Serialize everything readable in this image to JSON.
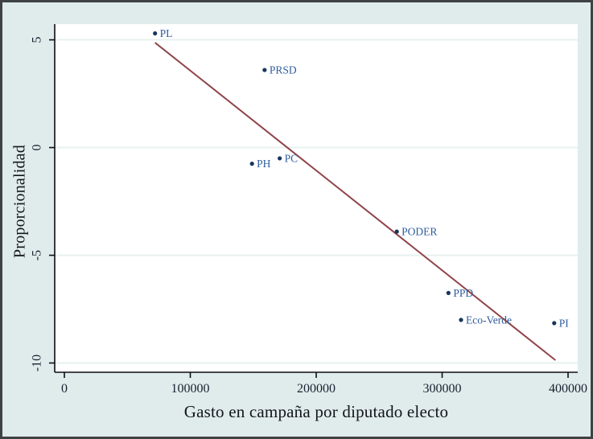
{
  "figure": {
    "kind": "stata-style scatter plot with linear fit",
    "background_color": "#dfeceb",
    "plot_background_color": "#ffffff",
    "frame_border_color": "#3f4244",
    "grid_color": "#e7f1f0",
    "axis_line_color": "#0d0d14",
    "tick_text_color": "#1a2030",
    "marker_color": "#17365d",
    "marker_label_color": "#2e5c9e",
    "fit_line_color": "#904448"
  },
  "chart_data": {
    "type": "scatter",
    "title": "",
    "xlabel": "Gasto en campaña por diputado electo",
    "ylabel": "Proporcionalidad",
    "grid": "horizontal-only",
    "legend": "none",
    "x_ticks": [
      0,
      100000,
      200000,
      300000,
      400000
    ],
    "x_tick_labels": [
      "0",
      "100000",
      "200000",
      "300000",
      "400000"
    ],
    "y_ticks": [
      5,
      0,
      -5,
      -10
    ],
    "y_tick_labels": [
      "5",
      "0",
      "-5",
      "-10"
    ],
    "xlim": [
      -7670,
      407670
    ],
    "ylim": [
      -10.43,
      5.73
    ],
    "points": [
      {
        "label": "PL",
        "x": 72000,
        "y": 5.3
      },
      {
        "label": "PRSD",
        "x": 159000,
        "y": 3.6
      },
      {
        "label": "PH",
        "x": 149000,
        "y": -0.75
      },
      {
        "label": "PC",
        "x": 171000,
        "y": -0.5
      },
      {
        "label": "PODER",
        "x": 264000,
        "y": -3.9
      },
      {
        "label": "PPD",
        "x": 305000,
        "y": -6.75
      },
      {
        "label": "Eco-Verde",
        "x": 315000,
        "y": -8.0
      },
      {
        "label": "PI",
        "x": 389000,
        "y": -8.15
      }
    ],
    "fit_line": {
      "x1": 72000,
      "y1": 4.87,
      "x2": 390000,
      "y2": -9.87
    }
  }
}
